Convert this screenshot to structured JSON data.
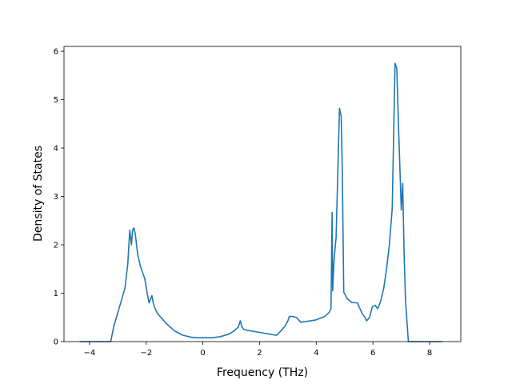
{
  "chart_data": {
    "type": "line",
    "title": "",
    "xlabel": "Frequency (THz)",
    "ylabel": "Density of States",
    "xlim": [
      -4.9,
      9.1
    ],
    "ylim": [
      0,
      6.1
    ],
    "xticks": [
      -4,
      -2,
      0,
      2,
      4,
      6,
      8
    ],
    "yticks": [
      0,
      1,
      2,
      3,
      4,
      5,
      6
    ],
    "grid": false,
    "line_color": "#1f77b4",
    "series": [
      {
        "x": [
          -4.35,
          -3.25,
          -3.15,
          -3.0,
          -2.85,
          -2.75,
          -2.65,
          -2.58,
          -2.52,
          -2.48,
          -2.43,
          -2.38,
          -2.3,
          -2.2,
          -2.05,
          -1.98,
          -1.9,
          -1.8,
          -1.75,
          -1.7,
          -1.6,
          -1.3,
          -1.0,
          -0.7,
          -0.4,
          -0.2,
          0.0,
          0.3,
          0.6,
          0.9,
          1.1,
          1.25,
          1.32,
          1.38,
          1.45,
          1.6,
          2.0,
          2.4,
          2.6,
          2.75,
          2.9,
          3.0,
          3.05,
          3.15,
          3.3,
          3.45,
          3.7,
          4.0,
          4.3,
          4.45,
          4.52,
          4.56,
          4.58,
          4.63,
          4.7,
          4.82,
          4.88,
          4.92,
          4.97,
          5.1,
          5.25,
          5.45,
          5.62,
          5.72,
          5.78,
          5.88,
          5.98,
          6.08,
          6.17,
          6.22,
          6.28,
          6.38,
          6.48,
          6.58,
          6.68,
          6.78,
          6.84,
          6.9,
          7.0,
          7.05,
          7.1,
          7.15,
          7.25,
          7.35,
          7.45,
          8.45
        ],
        "y": [
          0.0,
          0.0,
          0.3,
          0.6,
          0.9,
          1.1,
          1.6,
          2.3,
          2.0,
          2.3,
          2.35,
          2.2,
          1.8,
          1.55,
          1.3,
          1.05,
          0.8,
          0.95,
          0.8,
          0.7,
          0.58,
          0.38,
          0.22,
          0.13,
          0.09,
          0.08,
          0.08,
          0.08,
          0.1,
          0.15,
          0.22,
          0.3,
          0.43,
          0.3,
          0.25,
          0.23,
          0.19,
          0.15,
          0.13,
          0.22,
          0.32,
          0.43,
          0.52,
          0.52,
          0.5,
          0.4,
          0.42,
          0.45,
          0.52,
          0.6,
          0.68,
          2.67,
          1.05,
          1.7,
          2.15,
          4.82,
          4.65,
          3.5,
          1.02,
          0.88,
          0.81,
          0.8,
          0.58,
          0.5,
          0.43,
          0.5,
          0.72,
          0.75,
          0.68,
          0.75,
          0.85,
          1.1,
          1.5,
          2.0,
          2.75,
          5.75,
          5.65,
          4.5,
          2.72,
          3.27,
          1.8,
          0.85,
          0.0,
          0.0,
          0.0,
          0.0
        ]
      }
    ]
  }
}
